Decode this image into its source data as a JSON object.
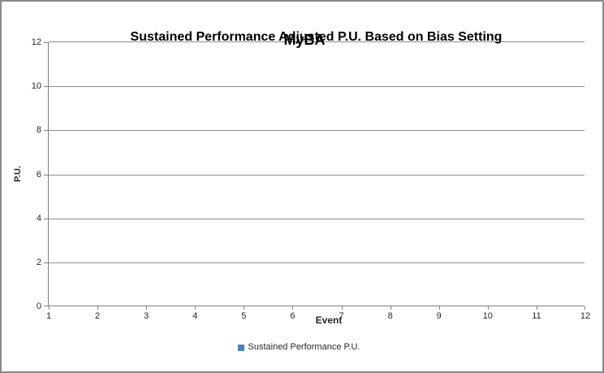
{
  "window": {
    "background_color": "#ffffff",
    "border_color": "#8a8a8a"
  },
  "title": {
    "text": "Sustained Performance Adjusted P.U. Based on Bias Setting",
    "overlay_text": "MyBA"
  },
  "legend": {
    "items": [
      {
        "label": "Sustained Performance  P.U.",
        "marker_color": "#4f81bd"
      }
    ]
  },
  "chart_data": {
    "type": "line",
    "title": "Sustained Performance Adjusted P.U. Based on Bias Setting",
    "overlay_title": "MyBA",
    "xlabel": "Event",
    "ylabel": "P.U.",
    "xlim": [
      1,
      12
    ],
    "ylim": [
      0,
      12
    ],
    "x_ticks": [
      1,
      2,
      3,
      4,
      5,
      6,
      7,
      8,
      9,
      10,
      11,
      12
    ],
    "y_ticks": [
      0,
      2,
      4,
      6,
      8,
      10,
      12
    ],
    "grid": "horizontal",
    "gridline_color": "#8c8c8c",
    "axis_color": "#7f7f7f",
    "legend_position": "bottom",
    "series": [
      {
        "name": "Sustained Performance  P.U.",
        "color": "#4f81bd",
        "values": []
      }
    ]
  }
}
